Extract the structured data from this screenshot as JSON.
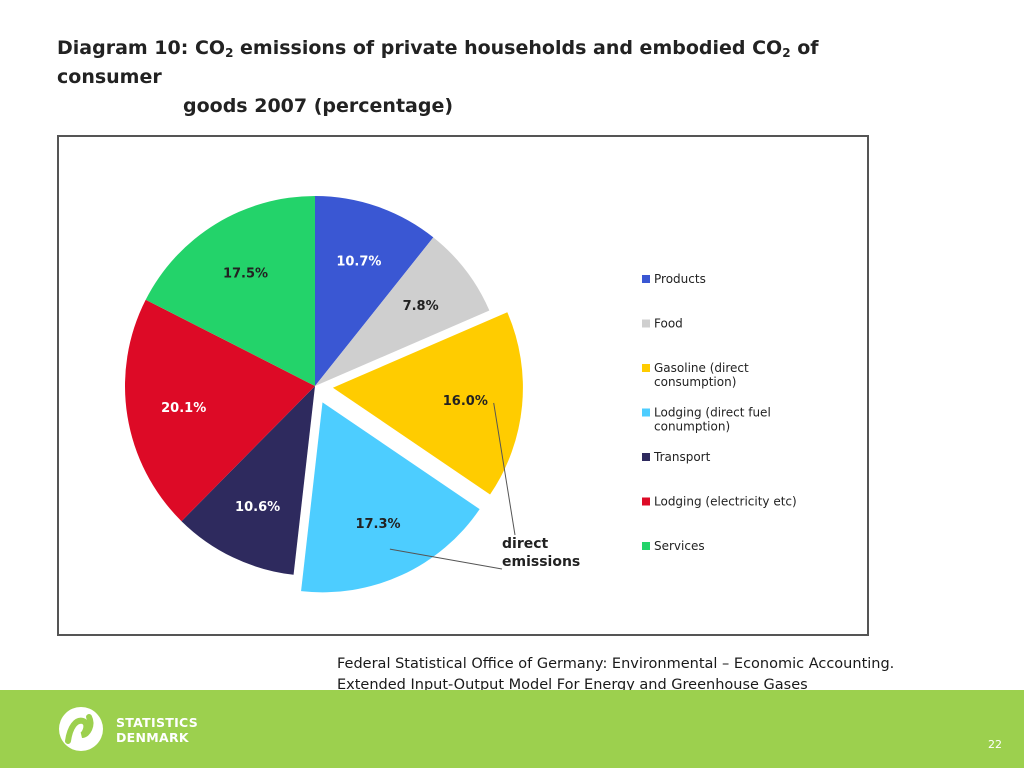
{
  "title": {
    "part1": "Diagram 10: CO",
    "sub1": "2",
    "part2": " emissions of private households and embodied CO",
    "sub2": "2",
    "part3": " of consumer",
    "line2": "goods 2007 (percentage)"
  },
  "chart_data": {
    "type": "pie",
    "start_angle_deg": 0,
    "direction": "clockwise",
    "slices": [
      {
        "name": "Products",
        "value": 10.7,
        "label": "10.7%",
        "color": "#3a57d3",
        "exploded": false,
        "label_color": "#ffffff"
      },
      {
        "name": "Food",
        "value": 7.8,
        "label": "7.8%",
        "color": "#cfcfcf",
        "exploded": false,
        "label_color": "#222222"
      },
      {
        "name": "Gasoline (direct consumption)",
        "value": 16.0,
        "label": "16.0%",
        "color": "#ffcc00",
        "exploded": true,
        "label_color": "#222222"
      },
      {
        "name": "Lodging (direct fuel conumption)",
        "value": 17.3,
        "label": "17.3%",
        "color": "#4dcdff",
        "exploded": true,
        "label_color": "#222222"
      },
      {
        "name": "Transport",
        "value": 10.6,
        "label": "10.6%",
        "color": "#2e2a5e",
        "exploded": false,
        "label_color": "#ffffff"
      },
      {
        "name": "Lodging (electricity etc)",
        "value": 20.1,
        "label": "20.1%",
        "color": "#dd0a26",
        "exploded": false,
        "label_color": "#ffffff"
      },
      {
        "name": "Services",
        "value": 17.5,
        "label": "17.5%",
        "color": "#23d36a",
        "exploded": false,
        "label_color": "#222222"
      }
    ],
    "legend": {
      "placement": "right",
      "entries": [
        {
          "lines": [
            "Products"
          ],
          "color": "#3a57d3"
        },
        {
          "lines": [
            "Food"
          ],
          "color": "#cfcfcf"
        },
        {
          "lines": [
            "Gasoline (direct",
            "consumption)"
          ],
          "color": "#ffcc00"
        },
        {
          "lines": [
            "Lodging (direct fuel",
            "conumption)"
          ],
          "color": "#4dcdff"
        },
        {
          "lines": [
            "Transport"
          ],
          "color": "#2e2a5e"
        },
        {
          "lines": [
            "Lodging (electricity etc)"
          ],
          "color": "#dd0a26"
        },
        {
          "lines": [
            "Services"
          ],
          "color": "#23d36a"
        }
      ]
    },
    "annotation": {
      "lines": [
        "direct",
        "emissions"
      ]
    }
  },
  "source": {
    "line1": "Federal Statistical Office of Germany: Environmental – Economic Accounting.",
    "line2": "Extended Input-Output Model For Energy and Greenhouse Gases"
  },
  "footer": {
    "logo_line1": "STATISTICS",
    "logo_line2": "DENMARK",
    "page_number": "22",
    "color": "#9cd04e"
  }
}
